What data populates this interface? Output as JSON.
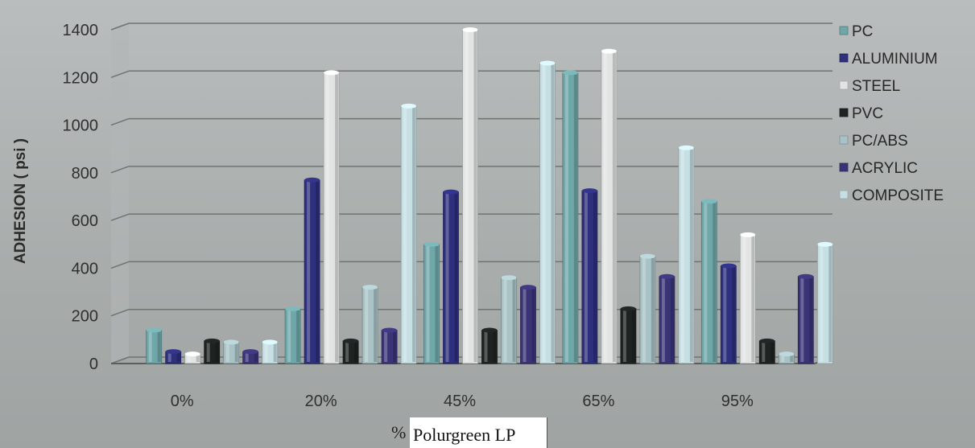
{
  "chart_data": {
    "type": "bar",
    "categories": [
      "0%",
      "20%",
      "45%",
      "65%",
      "95%"
    ],
    "series": [
      {
        "name": "PC",
        "color": "#6fa6a8",
        "values": [
          140,
          230,
          500,
          1220,
          680
        ]
      },
      {
        "name": "ALUMINIUM",
        "color": "#2e2f7d",
        "values": [
          50,
          770,
          720,
          725,
          410
        ]
      },
      {
        "name": "STEEL",
        "color": "#e2e4e4",
        "values": [
          40,
          1220,
          1400,
          1310,
          540
        ]
      },
      {
        "name": "PVC",
        "color": "#1e2322",
        "values": [
          95,
          95,
          140,
          230,
          95
        ]
      },
      {
        "name": "PC/ABS",
        "color": "#a9c2c5",
        "values": [
          90,
          320,
          360,
          450,
          40
        ]
      },
      {
        "name": "ACRYLIC",
        "color": "#3a3477",
        "values": [
          50,
          140,
          320,
          365,
          365
        ]
      },
      {
        "name": "COMPOSITE",
        "color": "#c6dfe3",
        "values": [
          90,
          1080,
          1260,
          905,
          500
        ]
      }
    ],
    "ylabel": "ADHESION ( psi )",
    "xlabel_prefix": "%",
    "xlabel": "Polurgreen LP",
    "ylim": [
      0,
      1400
    ],
    "yticks": [
      0,
      200,
      400,
      600,
      800,
      1000,
      1200,
      1400
    ],
    "grid": true,
    "legend_position": "right"
  }
}
